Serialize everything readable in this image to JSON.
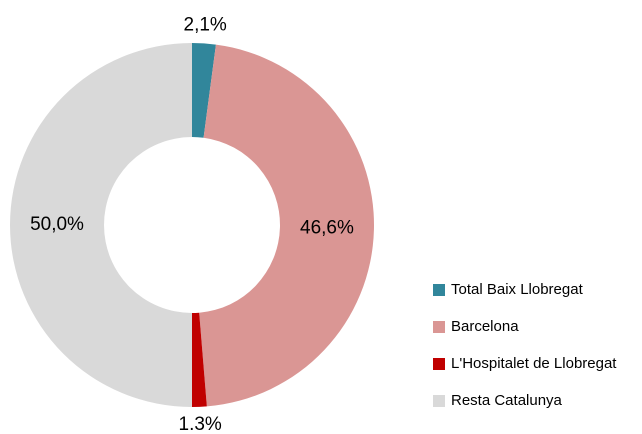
{
  "chart_data": {
    "type": "donut",
    "categories": [
      "Total Baix Llobregat",
      "Barcelona",
      "L'Hospitalet de Llobregat",
      "Resta Catalunya"
    ],
    "values": [
      2.1,
      46.6,
      1.3,
      50.0
    ],
    "value_labels": [
      "2,1%",
      "46,6%",
      "1.3%",
      "50,0%"
    ],
    "colors": [
      "#31869b",
      "#da9694",
      "#c00000",
      "#d9d9d9"
    ],
    "legend": "right"
  }
}
